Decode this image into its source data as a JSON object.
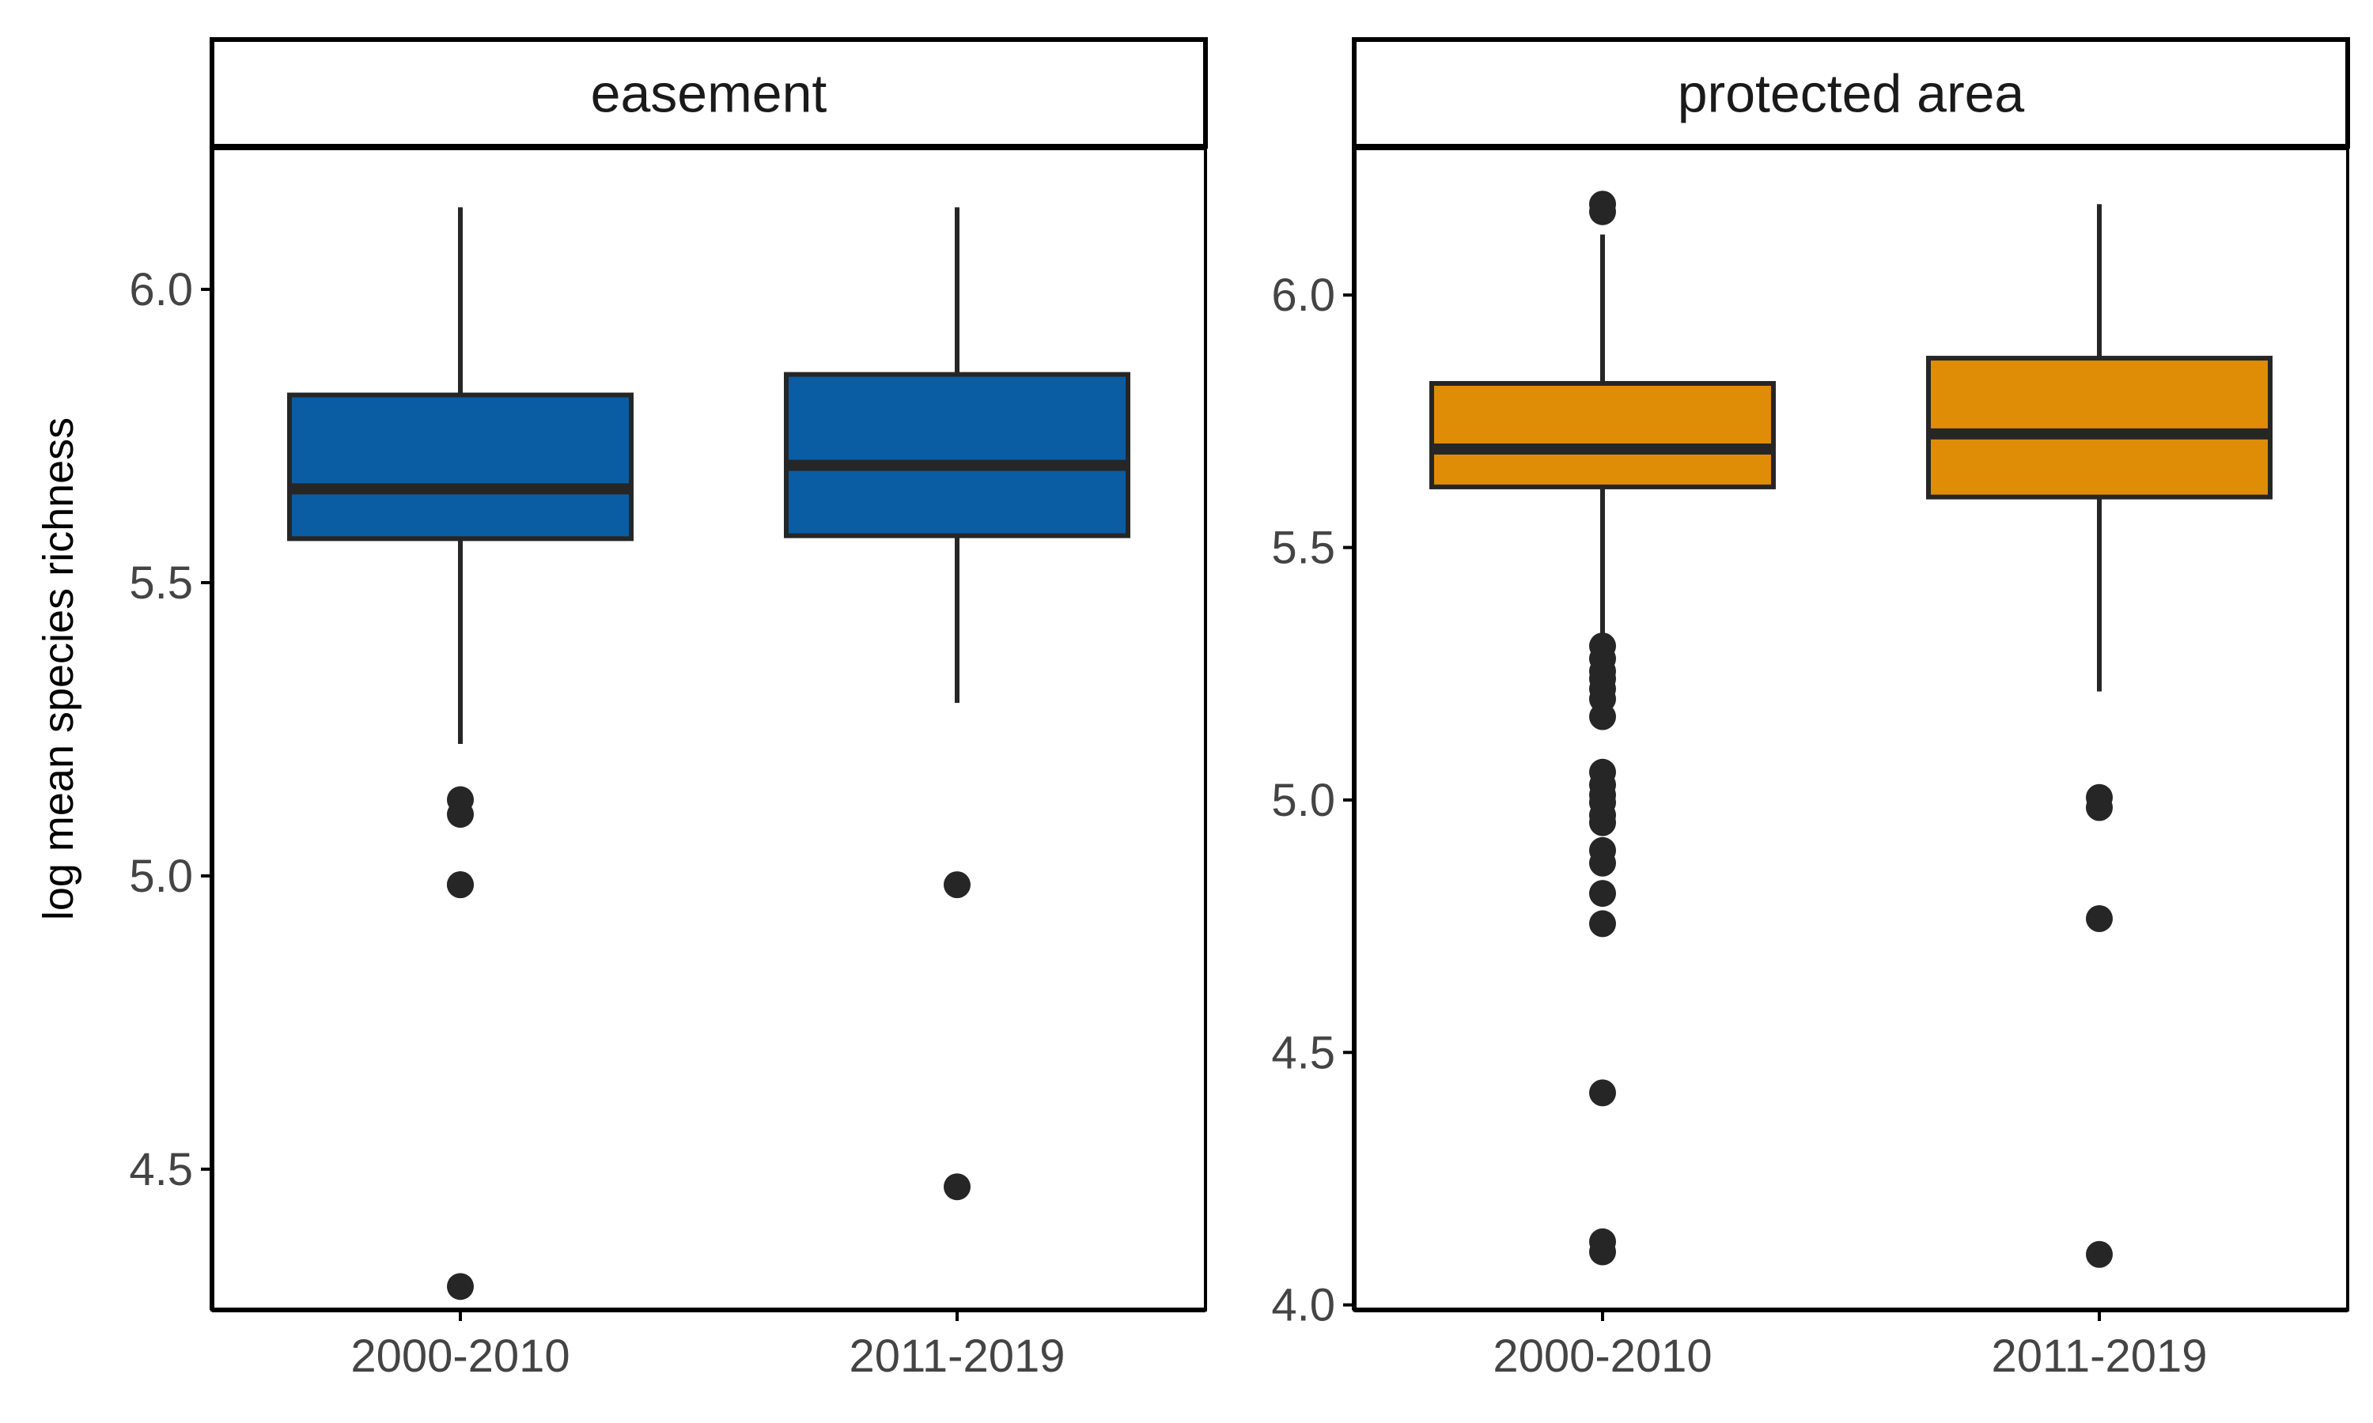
{
  "chart_data": {
    "type": "boxplot",
    "ylabel": "log mean species richness",
    "categories": [
      "2000-2010",
      "2011-2019"
    ],
    "colors": {
      "box_line": "#262626",
      "axis": "#000000"
    },
    "panels": [
      {
        "strip": "easement",
        "fill": "#0A5DA3",
        "yticks": [
          4.5,
          5.0,
          5.5,
          6.0
        ],
        "ytick_labels": [
          "4.5",
          "5.0",
          "5.5",
          "6.0"
        ],
        "ylim": [
          4.26,
          6.24
        ],
        "groups": [
          {
            "category": "2000-2010",
            "q1": 5.575,
            "median": 5.66,
            "q3": 5.82,
            "whisker_low": 5.225,
            "whisker_high": 6.14,
            "outliers": [
              5.13,
              5.105,
              4.985,
              4.985,
              4.3
            ]
          },
          {
            "category": "2011-2019",
            "q1": 5.58,
            "median": 5.7,
            "q3": 5.855,
            "whisker_low": 5.295,
            "whisker_high": 6.14,
            "outliers": [
              4.985,
              4.47
            ]
          }
        ]
      },
      {
        "strip": "protected area",
        "fill": "#DF8C07",
        "yticks": [
          4.0,
          4.5,
          5.0,
          5.5,
          6.0
        ],
        "ytick_labels": [
          "4.0",
          "4.5",
          "5.0",
          "5.5",
          "6.0"
        ],
        "ylim": [
          3.99,
          6.29
        ],
        "groups": [
          {
            "category": "2000-2010",
            "q1": 5.62,
            "median": 5.695,
            "q3": 5.825,
            "whisker_low": 5.32,
            "whisker_high": 6.12,
            "outliers": [
              6.18,
              6.165,
              5.305,
              5.28,
              5.255,
              5.24,
              5.22,
              5.2,
              5.165,
              5.055,
              5.03,
              5.01,
              4.995,
              4.97,
              4.955,
              4.9,
              4.875,
              4.815,
              4.755,
              4.42,
              4.125,
              4.105
            ]
          },
          {
            "category": "2011-2019",
            "q1": 5.6,
            "median": 5.725,
            "q3": 5.875,
            "whisker_low": 5.215,
            "whisker_high": 6.18,
            "outliers": [
              5.005,
              4.985,
              4.765,
              4.1
            ]
          }
        ]
      }
    ]
  }
}
